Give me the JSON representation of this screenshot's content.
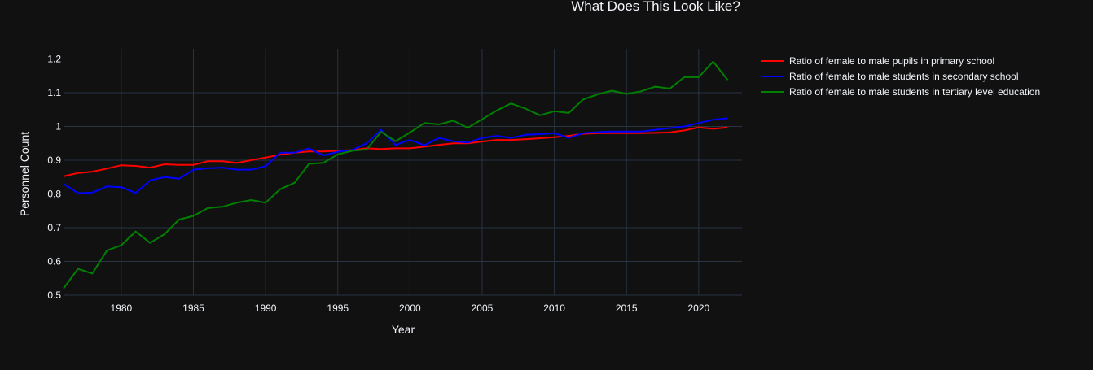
{
  "chart_data": {
    "type": "line",
    "title": "What Does This Look Like?",
    "xlabel": "Year",
    "ylabel": "Personnel Count",
    "xlim": [
      1976,
      2023
    ],
    "ylim": [
      0.5,
      1.23
    ],
    "x_ticks": [
      1980,
      1985,
      1990,
      1995,
      2000,
      2005,
      2010,
      2015,
      2020
    ],
    "y_ticks": [
      0.5,
      0.6,
      0.7,
      0.8,
      0.9,
      1,
      1.1,
      1.2
    ],
    "y_tick_labels": [
      "0.5",
      "0.6",
      "0.7",
      "0.8",
      "0.9",
      "1",
      "1.1",
      "1.2"
    ],
    "grid": true,
    "legend_position": "right",
    "x": [
      1976,
      1977,
      1978,
      1979,
      1980,
      1981,
      1982,
      1983,
      1984,
      1985,
      1986,
      1987,
      1988,
      1989,
      1990,
      1991,
      1992,
      1993,
      1994,
      1995,
      1996,
      1997,
      1998,
      1999,
      2000,
      2001,
      2002,
      2003,
      2004,
      2005,
      2006,
      2007,
      2008,
      2009,
      2010,
      2011,
      2012,
      2013,
      2014,
      2015,
      2016,
      2017,
      2018,
      2019,
      2020,
      2021,
      2022
    ],
    "series": [
      {
        "name": "Ratio of female to male pupils in primary school",
        "color": "#ff0000",
        "values": [
          0.852,
          0.862,
          0.866,
          0.875,
          0.885,
          0.883,
          0.878,
          0.888,
          0.886,
          0.886,
          0.897,
          0.897,
          0.892,
          0.9,
          0.908,
          0.916,
          0.922,
          0.926,
          0.926,
          0.928,
          0.93,
          0.935,
          0.933,
          0.935,
          0.935,
          0.94,
          0.945,
          0.95,
          0.95,
          0.955,
          0.96,
          0.96,
          0.962,
          0.965,
          0.968,
          0.972,
          0.978,
          0.98,
          0.98,
          0.98,
          0.98,
          0.981,
          0.982,
          0.988,
          0.997,
          0.993,
          0.997
        ]
      },
      {
        "name": "Ratio of female to male students in secondary school",
        "color": "#0000ff",
        "values": [
          0.83,
          0.802,
          0.804,
          0.822,
          0.82,
          0.803,
          0.84,
          0.85,
          0.845,
          0.872,
          0.876,
          0.878,
          0.872,
          0.872,
          0.882,
          0.922,
          0.922,
          0.935,
          0.914,
          0.925,
          0.93,
          0.95,
          0.99,
          0.945,
          0.96,
          0.944,
          0.966,
          0.956,
          0.952,
          0.966,
          0.972,
          0.966,
          0.975,
          0.977,
          0.98,
          0.966,
          0.98,
          0.983,
          0.985,
          0.985,
          0.985,
          0.99,
          0.995,
          1.0,
          1.01,
          1.02,
          1.024
        ]
      },
      {
        "name": "Ratio of female to male students in tertiary level education",
        "color": "#008000",
        "values": [
          0.52,
          0.578,
          0.564,
          0.632,
          0.648,
          0.689,
          0.655,
          0.681,
          0.724,
          0.735,
          0.758,
          0.762,
          0.774,
          0.782,
          0.774,
          0.814,
          0.833,
          0.889,
          0.892,
          0.917,
          0.928,
          0.932,
          0.984,
          0.956,
          0.982,
          1.01,
          1.006,
          1.017,
          0.996,
          1.021,
          1.047,
          1.068,
          1.053,
          1.033,
          1.045,
          1.04,
          1.08,
          1.095,
          1.106,
          1.096,
          1.104,
          1.118,
          1.112,
          1.146,
          1.146,
          1.192,
          1.138
        ]
      }
    ]
  }
}
